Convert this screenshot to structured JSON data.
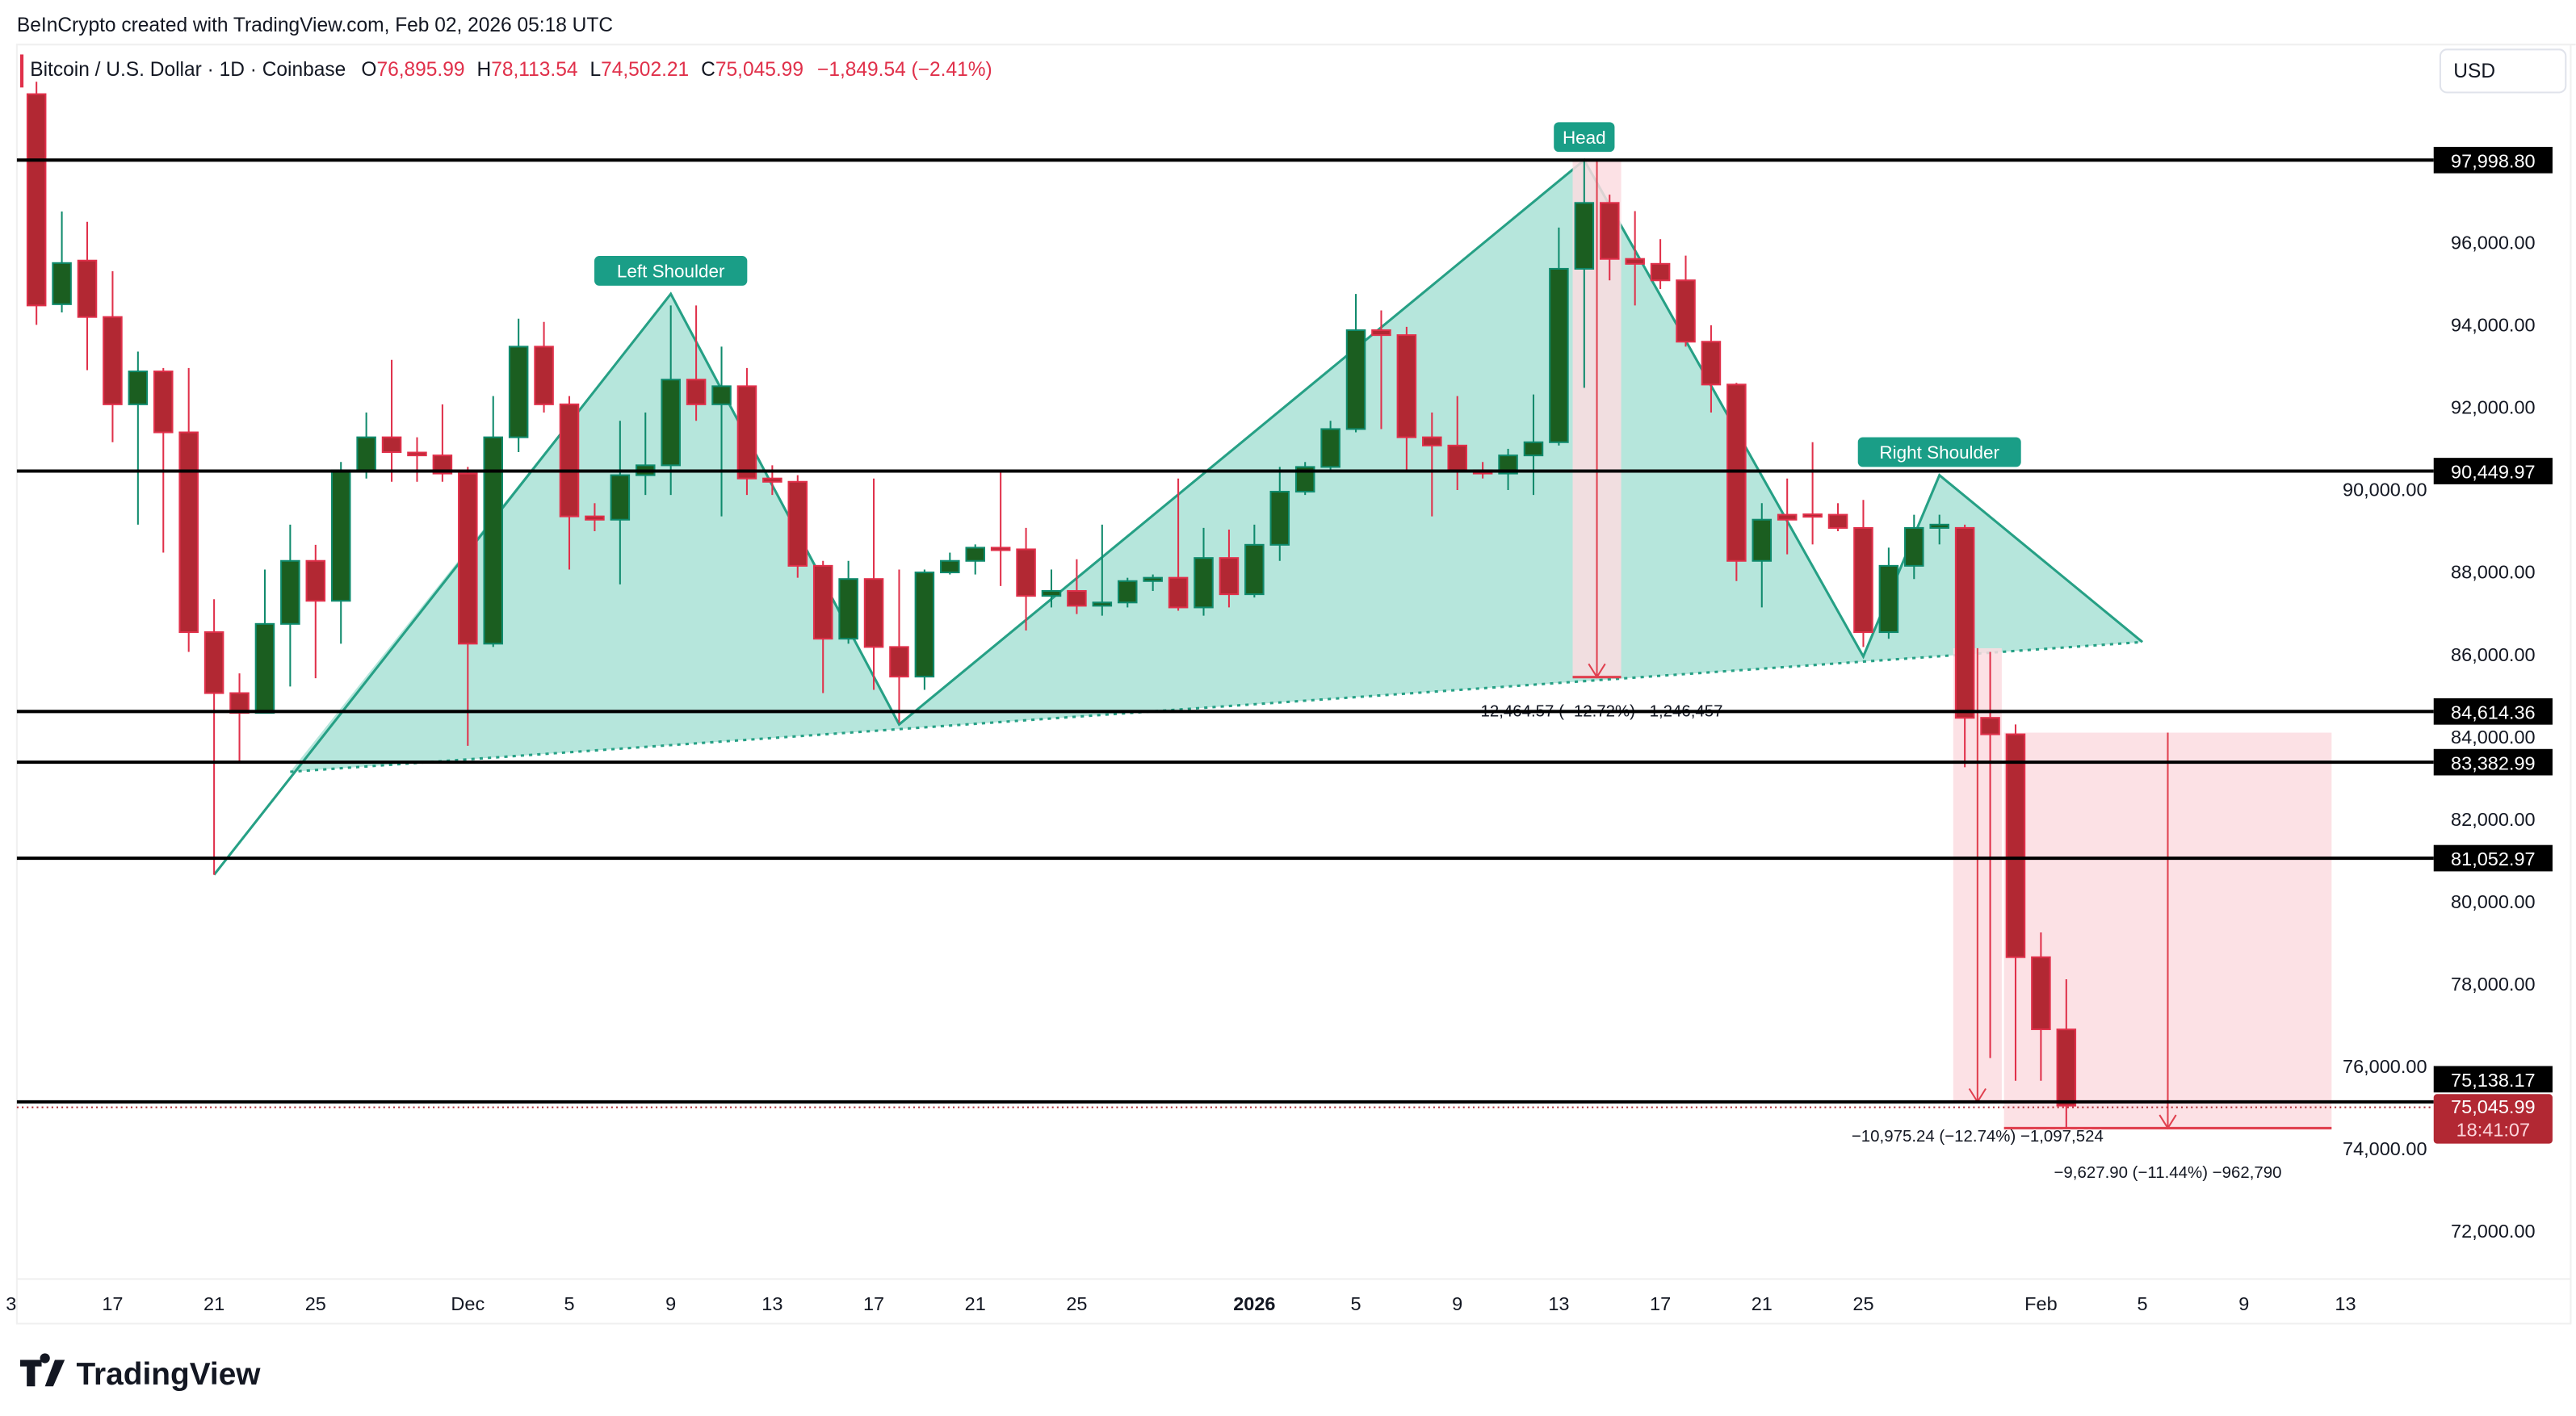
{
  "header": {
    "credit": "BeInCrypto created with TradingView.com, Feb 02, 2026 05:18 UTC",
    "symbol": "Bitcoin / U.S. Dollar · 1D · Coinbase",
    "o_label": "O",
    "o_value": "76,895.99",
    "h_label": "H",
    "h_value": "78,113.54",
    "l_label": "L",
    "l_value": "74,502.21",
    "c_label": "C",
    "c_value": "75,045.99",
    "change": "−1,849.54 (−2.41%)",
    "currency": "USD"
  },
  "footer": {
    "logo_text": "TradingView"
  },
  "colors": {
    "up": "#1b5e20",
    "up_border": "#0f8a6c",
    "down": "#b22833",
    "down_border": "#e0304a",
    "pattern_fill": "#b2e5da",
    "pattern_line": "#26a085",
    "label_bg": "#1a9e87",
    "measure_fill": "#fcdce1",
    "measure_line": "#e0404f"
  },
  "chart_data": {
    "type": "candlestick",
    "title": "Bitcoin / U.S. Dollar · 1D · Coinbase",
    "ylim": [
      70500,
      100500
    ],
    "y_ticks": [
      "72,000.00",
      "74,000.00",
      "76,000.00",
      "78,000.00",
      "80,000.00",
      "82,000.00",
      "84,000.00",
      "86,000.00",
      "88,000.00",
      "90,000.00",
      "92,000.00",
      "94,000.00",
      "96,000.00"
    ],
    "y_tick_values": [
      72000,
      74000,
      76000,
      78000,
      80000,
      82000,
      84000,
      86000,
      88000,
      90000,
      92000,
      94000,
      96000
    ],
    "x_ticks": [
      {
        "label": "3",
        "date": "2025-11-13"
      },
      {
        "label": "17",
        "date": "2025-11-17"
      },
      {
        "label": "21",
        "date": "2025-11-21"
      },
      {
        "label": "25",
        "date": "2025-11-25"
      },
      {
        "label": "Dec",
        "date": "2025-12-01"
      },
      {
        "label": "5",
        "date": "2025-12-05"
      },
      {
        "label": "9",
        "date": "2025-12-09"
      },
      {
        "label": "13",
        "date": "2025-12-13"
      },
      {
        "label": "17",
        "date": "2025-12-17"
      },
      {
        "label": "21",
        "date": "2025-12-21"
      },
      {
        "label": "25",
        "date": "2025-12-25"
      },
      {
        "label": "2026",
        "date": "2026-01-01",
        "bold": true
      },
      {
        "label": "5",
        "date": "2026-01-05"
      },
      {
        "label": "9",
        "date": "2026-01-09"
      },
      {
        "label": "13",
        "date": "2026-01-13"
      },
      {
        "label": "17",
        "date": "2026-01-17"
      },
      {
        "label": "21",
        "date": "2026-01-21"
      },
      {
        "label": "25",
        "date": "2026-01-25"
      },
      {
        "label": "Feb",
        "date": "2026-02-01"
      },
      {
        "label": "5",
        "date": "2026-02-05"
      },
      {
        "label": "9",
        "date": "2026-02-09"
      },
      {
        "label": "13",
        "date": "2026-02-13"
      }
    ],
    "x_start": "2025-11-13",
    "candles_columns": [
      "date",
      "open",
      "high",
      "low",
      "close"
    ],
    "candles": [
      [
        "2025-11-14",
        99600,
        99900,
        94000,
        94470
      ],
      [
        "2025-11-15",
        94500,
        96750,
        94300,
        95500
      ],
      [
        "2025-11-16",
        95560,
        96500,
        92900,
        94190
      ],
      [
        "2025-11-17",
        94190,
        95300,
        91150,
        92070
      ],
      [
        "2025-11-18",
        92070,
        93350,
        89150,
        92870
      ],
      [
        "2025-11-19",
        92870,
        92950,
        88470,
        91390
      ],
      [
        "2025-11-20",
        91390,
        92950,
        86060,
        86540
      ],
      [
        "2025-11-21",
        86540,
        87340,
        80650,
        85060
      ],
      [
        "2025-11-22",
        85060,
        85540,
        83380,
        84580
      ],
      [
        "2025-11-23",
        84580,
        88060,
        84580,
        86740
      ],
      [
        "2025-11-24",
        86740,
        89150,
        85220,
        88270
      ],
      [
        "2025-11-25",
        88270,
        88660,
        85420,
        87300
      ],
      [
        "2025-11-26",
        87300,
        90670,
        86260,
        90470
      ],
      [
        "2025-11-27",
        90470,
        91870,
        90270,
        91270
      ],
      [
        "2025-11-28",
        91270,
        93150,
        90190,
        90910
      ],
      [
        "2025-11-29",
        90900,
        91270,
        90190,
        90830
      ],
      [
        "2025-11-30",
        90830,
        92070,
        90190,
        90390
      ],
      [
        "2025-12-01",
        90390,
        90550,
        83780,
        86260
      ],
      [
        "2025-12-02",
        86260,
        92270,
        86180,
        91270
      ],
      [
        "2025-12-03",
        91270,
        94150,
        90910,
        93470
      ],
      [
        "2025-12-04",
        93470,
        94070,
        91870,
        92070
      ],
      [
        "2025-12-05",
        92070,
        92270,
        88060,
        89350
      ],
      [
        "2025-12-06",
        89350,
        89670,
        88990,
        89270
      ],
      [
        "2025-12-07",
        89270,
        91670,
        87700,
        90350
      ],
      [
        "2025-12-08",
        90350,
        91870,
        89870,
        90590
      ],
      [
        "2025-12-09",
        90590,
        94470,
        89870,
        92670
      ],
      [
        "2025-12-10",
        92670,
        94470,
        91670,
        92070
      ],
      [
        "2025-12-11",
        92070,
        93470,
        89350,
        92510
      ],
      [
        "2025-12-12",
        92510,
        92950,
        89870,
        90270
      ],
      [
        "2025-12-13",
        90270,
        90590,
        89870,
        90190
      ],
      [
        "2025-12-14",
        90190,
        90350,
        87860,
        88150
      ],
      [
        "2025-12-15",
        88150,
        88270,
        85060,
        86380
      ],
      [
        "2025-12-16",
        86380,
        88270,
        86260,
        87830
      ],
      [
        "2025-12-17",
        87830,
        90270,
        85140,
        86180
      ],
      [
        "2025-12-18",
        86180,
        88060,
        84340,
        85460
      ],
      [
        "2025-12-19",
        85460,
        88060,
        85140,
        87990
      ],
      [
        "2025-12-20",
        87990,
        88470,
        87940,
        88270
      ],
      [
        "2025-12-21",
        88270,
        88670,
        87940,
        88590
      ],
      [
        "2025-12-22",
        88590,
        90470,
        87660,
        88550
      ],
      [
        "2025-12-23",
        88550,
        89070,
        86580,
        87420
      ],
      [
        "2025-12-24",
        87420,
        88060,
        87140,
        87540
      ],
      [
        "2025-12-25",
        87540,
        88310,
        86980,
        87180
      ],
      [
        "2025-12-26",
        87180,
        89150,
        86940,
        87260
      ],
      [
        "2025-12-27",
        87260,
        87860,
        87140,
        87780
      ],
      [
        "2025-12-28",
        87780,
        87940,
        87540,
        87860
      ],
      [
        "2025-12-29",
        87860,
        90270,
        87060,
        87140
      ],
      [
        "2025-12-30",
        87140,
        89070,
        86940,
        88340
      ],
      [
        "2025-12-31",
        88340,
        89030,
        87140,
        87460
      ],
      [
        "2026-01-01",
        87460,
        89150,
        87380,
        88660
      ],
      [
        "2026-01-02",
        88660,
        90550,
        88270,
        89950
      ],
      [
        "2026-01-03",
        89950,
        90670,
        89870,
        90550
      ],
      [
        "2026-01-04",
        90550,
        91670,
        90470,
        91470
      ],
      [
        "2026-01-05",
        91470,
        94750,
        91390,
        93870
      ],
      [
        "2026-01-06",
        93870,
        94350,
        91470,
        93750
      ],
      [
        "2026-01-07",
        93750,
        93950,
        90470,
        91270
      ],
      [
        "2026-01-08",
        91270,
        91870,
        89350,
        91070
      ],
      [
        "2026-01-09",
        91070,
        92270,
        89990,
        90470
      ],
      [
        "2026-01-10",
        90470,
        90670,
        90270,
        90390
      ],
      [
        "2026-01-11",
        90390,
        90990,
        89990,
        90830
      ],
      [
        "2026-01-12",
        90830,
        92310,
        89870,
        91150
      ],
      [
        "2026-01-13",
        91150,
        96360,
        91070,
        95360
      ],
      [
        "2026-01-14",
        95360,
        97998,
        92470,
        96960
      ],
      [
        "2026-01-15",
        96960,
        97160,
        95080,
        95600
      ],
      [
        "2026-01-16",
        95600,
        96760,
        94470,
        95480
      ],
      [
        "2026-01-17",
        95480,
        96080,
        94870,
        95080
      ],
      [
        "2026-01-18",
        95080,
        95680,
        93470,
        93590
      ],
      [
        "2026-01-19",
        93590,
        93990,
        91870,
        92550
      ],
      [
        "2026-01-20",
        92550,
        92590,
        87780,
        88270
      ],
      [
        "2026-01-21",
        88270,
        89670,
        87140,
        89270
      ],
      [
        "2026-01-22",
        89390,
        90270,
        88430,
        89270
      ],
      [
        "2026-01-23",
        89400,
        91150,
        88670,
        89350
      ],
      [
        "2026-01-24",
        89390,
        89670,
        88990,
        89070
      ],
      [
        "2026-01-25",
        89070,
        89750,
        86180,
        86540
      ],
      [
        "2026-01-26",
        86540,
        88590,
        86380,
        88150
      ],
      [
        "2026-01-27",
        88150,
        89390,
        87830,
        89070
      ],
      [
        "2026-01-28",
        89070,
        89390,
        88670,
        89150
      ],
      [
        "2026-01-29",
        89070,
        89150,
        83260,
        84460
      ],
      [
        "2026-01-30",
        84460,
        86060,
        76200,
        84060
      ],
      [
        "2026-01-31",
        84060,
        84300,
        75650,
        78650
      ],
      [
        "2026-02-01",
        78650,
        79250,
        75650,
        76900
      ],
      [
        "2026-02-02",
        76896,
        78113,
        74502,
        75046
      ]
    ],
    "horizontal_levels": [
      {
        "value": 97998.8,
        "label": "97,998.80"
      },
      {
        "value": 90449.97,
        "label": "90,449.97"
      },
      {
        "value": 84614.36,
        "label": "84,614.36"
      },
      {
        "value": 83382.99,
        "label": "83,382.99"
      },
      {
        "value": 81052.97,
        "label": "81,052.97"
      },
      {
        "value": 75138.17,
        "label": "75,138.17"
      }
    ],
    "last_price": {
      "value": 75045.99,
      "label": "75,045.99",
      "countdown": "18:41:07"
    },
    "pattern": {
      "name": "head and shoulders",
      "vertices": [
        [
          "2025-11-21",
          80650
        ],
        [
          "2025-12-09",
          94750
        ],
        [
          "2025-12-18",
          84300
        ],
        [
          "2026-01-14",
          97998
        ],
        [
          "2026-01-25",
          85950
        ],
        [
          "2026-01-28",
          90350
        ],
        [
          "2026-02-05",
          86300
        ]
      ],
      "neckline": [
        [
          "2025-11-24",
          83150
        ],
        [
          "2026-02-05",
          86300
        ]
      ],
      "labels": [
        {
          "text": "Left Shoulder",
          "date": "2025-12-09",
          "price": 94750
        },
        {
          "text": "Head",
          "date": "2026-01-14",
          "price": 97998
        },
        {
          "text": "Right Shoulder",
          "date": "2026-01-28",
          "price": 90350
        }
      ]
    },
    "measurements": [
      {
        "text": "−12,464.57 (−12.72%) −1,246,457",
        "from_date": "2026-01-14",
        "to_date": "2026-01-15",
        "from": 97998,
        "to": 85450
      },
      {
        "text": "−10,975.24 (−12.74%) −1,097,524",
        "from_date": "2026-01-29",
        "to_date": "2026-01-30",
        "from": 86150,
        "to": 75138
      },
      {
        "text": "−9,627.90 (−11.44%) −962,790",
        "from_date": "2026-01-31",
        "to_date": "2026-02-12",
        "from": 84100,
        "to": 74500
      }
    ]
  }
}
